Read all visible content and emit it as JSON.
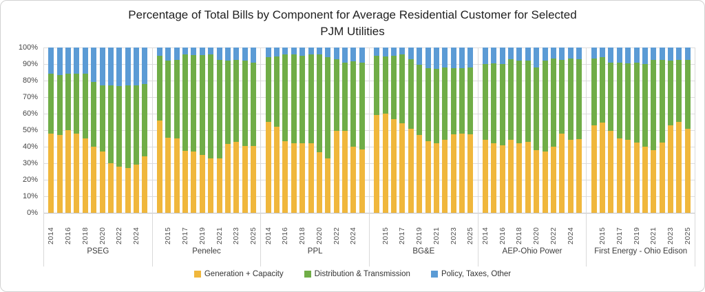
{
  "title": {
    "line1": "Percentage of Total Bills by Component for Average Residential Customer for Selected",
    "line2": "PJM Utilities"
  },
  "chart_data": {
    "type": "bar",
    "stacked": true,
    "unit": "percent",
    "ylim": [
      0,
      100
    ],
    "y_ticks": [
      "100%",
      "90%",
      "80%",
      "70%",
      "60%",
      "50%",
      "40%",
      "30%",
      "20%",
      "10%",
      "0%"
    ],
    "grid": true,
    "legend_position": "bottom",
    "series": [
      {
        "key": "generation",
        "name": "Generation + Capacity",
        "color": "#F0B73C"
      },
      {
        "key": "distribution",
        "name": "Distribution & Transmission",
        "color": "#70AD47"
      },
      {
        "key": "policy",
        "name": "Policy, Taxes, Other",
        "color": "#5B9BD5"
      }
    ],
    "groups": [
      {
        "name": "PSEG",
        "years": [
          2014,
          2015,
          2016,
          2017,
          2018,
          2019,
          2020,
          2021,
          2022,
          2023,
          2024,
          2025
        ],
        "labeled_years": [
          2014,
          2016,
          2018,
          2020,
          2022,
          2024
        ],
        "values": {
          "generation": [
            48,
            47,
            50,
            48,
            45,
            40,
            37,
            30,
            28,
            27,
            29,
            34
          ],
          "distribution": [
            36,
            36.5,
            34,
            36,
            39,
            39,
            40,
            47,
            48.5,
            50,
            48,
            44
          ],
          "policy": [
            16,
            16.5,
            16,
            16,
            16,
            21,
            23,
            23,
            23.5,
            23,
            23,
            22
          ]
        }
      },
      {
        "name": "Penelec",
        "years": [
          2014,
          2015,
          2016,
          2017,
          2018,
          2019,
          2020,
          2021,
          2022,
          2023,
          2024,
          2025
        ],
        "labeled_years": [
          2015,
          2017,
          2019,
          2021,
          2023,
          2025
        ],
        "values": {
          "generation": [
            56,
            45.5,
            45,
            37.5,
            37,
            35,
            33,
            33,
            41.5,
            43,
            40.5,
            40.5
          ],
          "distribution": [
            39,
            46.5,
            47.5,
            58.5,
            58.5,
            60.5,
            63,
            59.5,
            50.5,
            49.5,
            51.5,
            50.5
          ],
          "policy": [
            5,
            8,
            7.5,
            4,
            4.5,
            4.5,
            4,
            7.5,
            8,
            7.5,
            8,
            9
          ]
        }
      },
      {
        "name": "PPL",
        "years": [
          2014,
          2015,
          2016,
          2017,
          2018,
          2019,
          2020,
          2021,
          2022,
          2023,
          2024,
          2025
        ],
        "labeled_years": [
          2014,
          2016,
          2018,
          2020,
          2022,
          2024
        ],
        "values": {
          "generation": [
            55,
            52,
            43.5,
            42,
            42,
            42,
            36.5,
            33,
            49.5,
            49.5,
            40,
            38.5
          ],
          "distribution": [
            39,
            42.5,
            52.5,
            54,
            53,
            54,
            59.5,
            61,
            43.5,
            41.5,
            51.5,
            52.5
          ],
          "policy": [
            6,
            5.5,
            4,
            4,
            5,
            4,
            4,
            6,
            7,
            9,
            8.5,
            9
          ]
        }
      },
      {
        "name": "BG&E",
        "years": [
          2014,
          2015,
          2016,
          2017,
          2018,
          2019,
          2020,
          2021,
          2022,
          2023,
          2024,
          2025
        ],
        "labeled_years": [
          2015,
          2017,
          2019,
          2021,
          2023,
          2025
        ],
        "values": {
          "generation": [
            59,
            60,
            56.5,
            54,
            51,
            47,
            43.5,
            42,
            44,
            47.5,
            48,
            47.5
          ],
          "distribution": [
            36,
            34.5,
            38.5,
            42,
            42,
            42.5,
            44,
            45,
            44,
            40,
            39.5,
            40.5
          ],
          "policy": [
            5,
            5.5,
            5,
            4,
            7,
            10.5,
            12.5,
            13,
            12,
            12.5,
            12.5,
            12
          ]
        }
      },
      {
        "name": "AEP-Ohio Power",
        "years": [
          2014,
          2015,
          2016,
          2017,
          2018,
          2019,
          2020,
          2021,
          2022,
          2023,
          2024,
          2025
        ],
        "labeled_years": [
          2014,
          2016,
          2018,
          2020,
          2022,
          2024
        ],
        "values": {
          "generation": [
            44,
            42,
            41,
            44,
            42,
            43,
            38,
            37,
            40,
            48,
            44,
            44.5
          ],
          "distribution": [
            46,
            48.5,
            49,
            49,
            50,
            49,
            50,
            55,
            53.5,
            44.5,
            49.5,
            48.5
          ],
          "policy": [
            10,
            9.5,
            10,
            7,
            8,
            8,
            12,
            8,
            6.5,
            7.5,
            6.5,
            7
          ]
        }
      },
      {
        "name": "First Energy - Ohio Edison",
        "years": [
          2014,
          2015,
          2016,
          2017,
          2018,
          2019,
          2020,
          2021,
          2022,
          2023,
          2024,
          2025
        ],
        "labeled_years": [
          2015,
          2017,
          2019,
          2021,
          2023,
          2025
        ],
        "values": {
          "generation": [
            53,
            54.5,
            49.5,
            45,
            44,
            42.5,
            40,
            38,
            42.5,
            53,
            55,
            51
          ],
          "distribution": [
            40.5,
            39.5,
            41.5,
            46,
            46.5,
            48.5,
            50,
            54.5,
            50,
            39,
            37.5,
            41.5
          ],
          "policy": [
            6.5,
            6,
            9,
            9,
            9.5,
            9,
            10,
            7.5,
            7.5,
            8,
            7.5,
            7.5
          ]
        }
      }
    ],
    "colors": {
      "gridline": "#dcdcdc",
      "axis_line": "#bdbdbd",
      "tick_text": "#454545",
      "title_text": "#1f1f1f"
    }
  },
  "legend": {
    "items": [
      {
        "label": "Generation + Capacity"
      },
      {
        "label": "Distribution & Transmission"
      },
      {
        "label": "Policy, Taxes, Other"
      }
    ]
  }
}
